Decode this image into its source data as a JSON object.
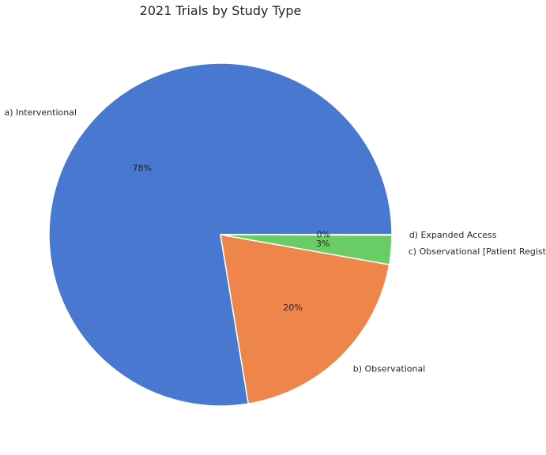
{
  "chart_data": {
    "type": "pie",
    "title": "2021 Trials by Study Type",
    "slices": [
      {
        "label": "a) Interventional",
        "value": 77.6,
        "pct_text": "78%",
        "color": "#4878d0"
      },
      {
        "label": "b) Observational",
        "value": 19.6,
        "pct_text": "20%",
        "color": "#ee854a"
      },
      {
        "label": "c) Observational [Patient Registry]",
        "value": 2.75,
        "pct_text": "3%",
        "color": "#6acc64"
      },
      {
        "label": "d) Expanded Access",
        "value": 0.05,
        "pct_text": "0%",
        "color": "#d65f5f"
      }
    ],
    "start_angle_deg": 0,
    "direction": "counterclockwise",
    "legend": "none"
  }
}
